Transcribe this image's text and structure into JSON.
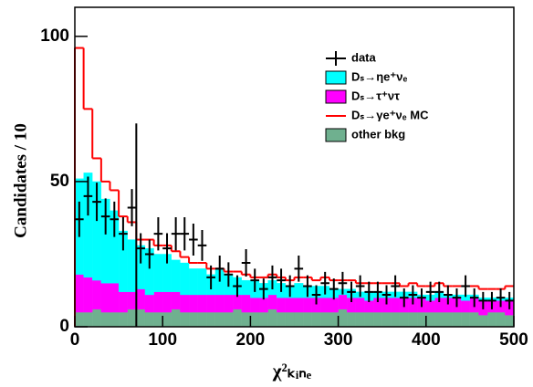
{
  "chart_data": {
    "type": "stacked-histogram",
    "ylabel": "Candidates / 10",
    "xlabel": "χ²ₖᵢₙₑ",
    "xlim": [
      0,
      500
    ],
    "ylim": [
      0,
      110
    ],
    "xticks": [
      0,
      100,
      200,
      300,
      400,
      500
    ],
    "yticks": [
      0,
      50,
      100
    ],
    "bins": [
      0,
      10,
      20,
      30,
      40,
      50,
      60,
      70,
      80,
      90,
      100,
      110,
      120,
      130,
      140,
      150,
      160,
      170,
      180,
      190,
      200,
      210,
      220,
      230,
      240,
      250,
      260,
      270,
      280,
      290,
      300,
      310,
      320,
      330,
      340,
      350,
      360,
      370,
      380,
      390,
      400,
      410,
      420,
      430,
      440,
      450,
      460,
      470,
      480,
      490,
      500
    ],
    "series": [
      {
        "name": "other bkg",
        "color": "#6fb08f",
        "values": [
          5,
          5,
          6,
          5,
          5,
          5,
          6,
          6,
          5,
          5,
          5,
          6,
          5,
          5,
          5,
          5,
          5,
          5,
          6,
          5,
          5,
          5,
          6,
          5,
          5,
          5,
          5,
          5,
          5,
          5,
          6,
          5,
          5,
          5,
          5,
          5,
          5,
          5,
          5,
          5,
          5,
          5,
          5,
          5,
          5,
          5,
          4,
          5,
          5,
          4
        ]
      },
      {
        "name": "Dₛ→τ⁺ντ",
        "color": "#ff00ff",
        "values": [
          13,
          12,
          10,
          10,
          10,
          7,
          6,
          7,
          6,
          7,
          7,
          6,
          6,
          6,
          6,
          6,
          6,
          6,
          5,
          6,
          5,
          5,
          5,
          5,
          5,
          5,
          5,
          5,
          5,
          5,
          5,
          5,
          5,
          4,
          5,
          5,
          5,
          5,
          5,
          5,
          4,
          5,
          5,
          5,
          4,
          5,
          5,
          4,
          4,
          5
        ]
      },
      {
        "name": "Dₛ→ηe⁺νₑ",
        "color": "#00ffff",
        "values": [
          33,
          36,
          34,
          29,
          25,
          21,
          18,
          15,
          16,
          13,
          13,
          11,
          11,
          9,
          9,
          7,
          9,
          7,
          6,
          5,
          6,
          5,
          5,
          5,
          4,
          5,
          4,
          4,
          4,
          3,
          2,
          3,
          2,
          3,
          2,
          2,
          2,
          2,
          2,
          1,
          2,
          2,
          1,
          1,
          2,
          1,
          1,
          1,
          1,
          1
        ]
      }
    ],
    "mc_line": {
      "name": "Dₛ→γe⁺νₑ MC",
      "color": "#ff0000",
      "values": [
        96,
        75,
        58,
        50,
        47,
        38,
        36,
        30,
        30,
        28,
        28,
        26,
        24,
        22,
        22,
        20,
        20,
        19,
        19,
        18,
        17,
        17,
        18,
        17,
        16,
        17,
        17,
        16,
        17,
        16,
        16,
        16,
        15,
        15,
        15,
        15,
        15,
        14,
        15,
        14,
        14,
        15,
        14,
        14,
        14,
        14,
        13,
        13,
        13,
        14
      ]
    },
    "data": {
      "name": "data",
      "color": "#000000",
      "values": [
        37,
        45,
        43,
        38,
        37,
        32,
        41,
        27,
        25,
        32,
        27,
        32,
        32,
        30,
        28,
        17,
        20,
        18,
        14,
        22,
        16,
        13,
        17,
        16,
        14,
        20,
        14,
        11,
        15,
        13,
        15,
        12,
        14,
        12,
        12,
        11,
        14,
        10,
        11,
        10,
        12,
        12,
        11,
        10,
        14,
        10,
        9,
        9,
        10,
        9
      ],
      "errors": [
        6.1,
        6.7,
        6.6,
        6.2,
        6.1,
        5.7,
        6.4,
        5.2,
        5,
        5.7,
        5.2,
        5.7,
        5.7,
        5.5,
        5.3,
        4.1,
        4.5,
        4.2,
        3.7,
        4.7,
        4,
        3.6,
        4.1,
        4,
        3.7,
        4.5,
        3.7,
        3.3,
        3.9,
        3.6,
        3.9,
        3.5,
        3.7,
        3.5,
        3.5,
        3.3,
        3.7,
        3.2,
        3.3,
        3.2,
        3.5,
        3.5,
        3.3,
        3.2,
        3.7,
        3.2,
        3,
        3,
        3.2,
        3
      ]
    },
    "cut_line": {
      "x": 70,
      "y": 70
    }
  }
}
